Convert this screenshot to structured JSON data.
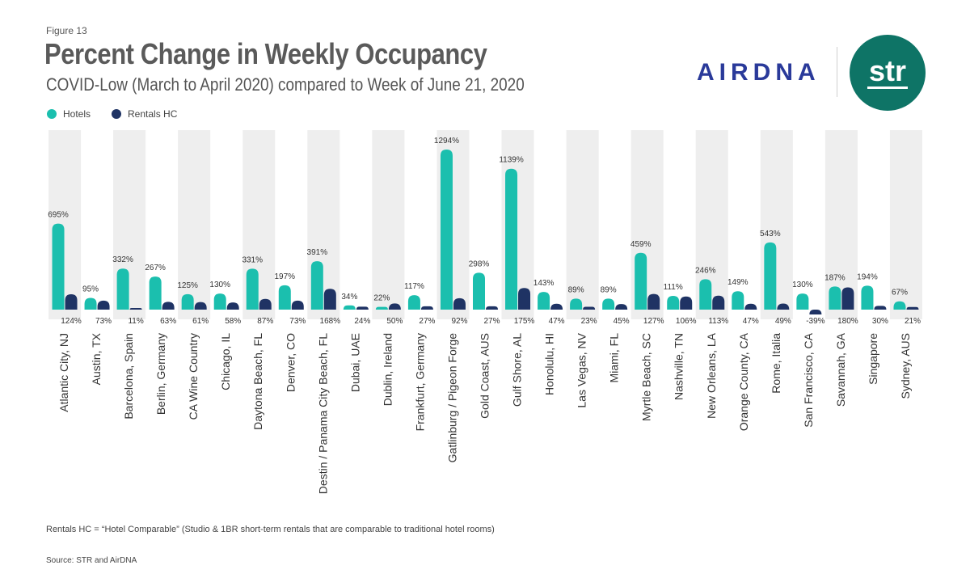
{
  "header": {
    "figure_label": "Figure 13",
    "title": "Percent Change in Weekly Occupancy",
    "subtitle": "COVID-Low (March to April 2020) compared to Week of June 21, 2020"
  },
  "brand": {
    "airdna": "AIRDNA",
    "str": "str"
  },
  "colors": {
    "hotels": "#1bbfae",
    "rentals": "#1f3364",
    "band": "#eeeeee"
  },
  "chart_data": {
    "type": "bar",
    "title": "Percent Change in Weekly Occupancy",
    "subtitle": "COVID-Low (March to April 2020) compared to Week of June 21, 2020",
    "legend": "top-left",
    "unit": "%",
    "ylim": [
      -60,
      1400
    ],
    "series": [
      {
        "name": "Hotels",
        "label_position": "above bar",
        "values": [
          695,
          95,
          332,
          267,
          125,
          130,
          331,
          197,
          391,
          34,
          22,
          117,
          1294,
          298,
          1139,
          143,
          89,
          89,
          459,
          111,
          246,
          149,
          543,
          130,
          187,
          194,
          67
        ]
      },
      {
        "name": "Rentals HC",
        "label_position": "axis row",
        "values": [
          124,
          73,
          11,
          63,
          61,
          58,
          87,
          73,
          168,
          24,
          50,
          27,
          92,
          27,
          175,
          47,
          23,
          45,
          127,
          106,
          113,
          47,
          49,
          -39,
          180,
          30,
          21
        ]
      }
    ],
    "categories": [
      "Atlantic City, NJ",
      "Austin, TX",
      "Barcelona, Spain",
      "Berlin, Germany",
      "CA Wine Country",
      "Chicago, IL",
      "Daytona Beach, FL",
      "Denver, CO",
      "Destin / Panama City Beach, FL",
      "Dubai, UAE",
      "Dublin, Ireland",
      "Frankfurt, Germany",
      "Gatlinburg / Pigeon Forge",
      "Gold Coast, AUS",
      "Gulf Shore, AL",
      "Honolulu, HI",
      "Las Vegas, NV",
      "Miami, FL",
      "Myrtle Beach, SC",
      "Nashville, TN",
      "New Orleans, LA",
      "Orange County, CA",
      "Rome, Italia",
      "San Francisco, CA",
      "Savannah, GA",
      "Singapore",
      "Sydney, AUS"
    ]
  },
  "footnote": "Rentals HC = “Hotel Comparable” (Studio & 1BR short-term rentals that are comparable to traditional hotel rooms)",
  "source": "Source: STR and AirDNA"
}
